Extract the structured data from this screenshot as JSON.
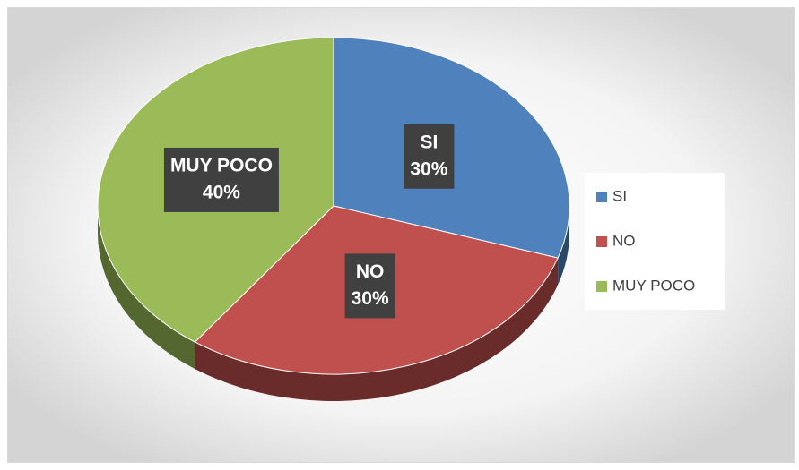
{
  "chart_data": {
    "type": "pie",
    "categories": [
      "SI",
      "NO",
      "MUY POCO"
    ],
    "values": [
      30,
      30,
      40
    ],
    "value_labels": [
      "30%",
      "30%",
      "40%"
    ],
    "colors": [
      "#4f81bd",
      "#c0504d",
      "#9bbb59"
    ],
    "legend": "right"
  }
}
